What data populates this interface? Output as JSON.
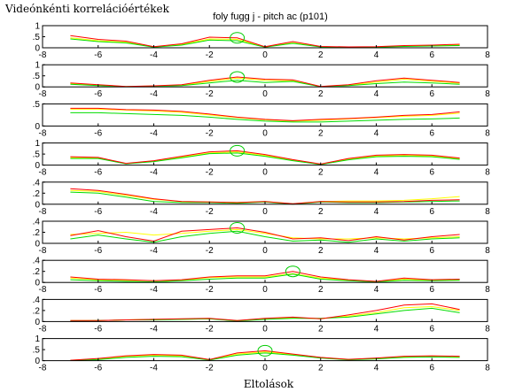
{
  "figure": {
    "title": "foly fugg j - pitch ac (p101)",
    "corner_label": "Videónkénti korrelációértékek",
    "xlabel": "Eltolások"
  },
  "colors": {
    "red": "#ff0000",
    "green": "#00dd00",
    "yellow": "#ffff00",
    "marker": "#00cc00",
    "axis": "#000000",
    "background": "#ffffff"
  },
  "chart_data": [
    {
      "type": "line",
      "x": [
        -7,
        -6,
        -5,
        -4,
        -3,
        -2,
        -1,
        0,
        1,
        2,
        3,
        4,
        5,
        6,
        7
      ],
      "xlim": [
        -8,
        8
      ],
      "xticks": [
        -8,
        -6,
        -4,
        -2,
        0,
        2,
        4,
        6,
        8
      ],
      "ylim": [
        0,
        1
      ],
      "yticks": [
        0,
        0.5,
        1
      ],
      "grid": false,
      "marker_x": -1,
      "series": [
        {
          "color": "red",
          "values": [
            0.55,
            0.38,
            0.3,
            0.05,
            0.18,
            0.48,
            0.45,
            0.05,
            0.28,
            0.06,
            0.04,
            0.05,
            0.1,
            0.12,
            0.16
          ]
        },
        {
          "color": "yellow",
          "values": [
            0.45,
            0.32,
            0.25,
            0.04,
            0.15,
            0.4,
            0.38,
            0.04,
            0.22,
            0.05,
            0.03,
            0.04,
            0.08,
            0.1,
            0.13
          ]
        },
        {
          "color": "green",
          "values": [
            0.4,
            0.28,
            0.22,
            0.03,
            0.12,
            0.35,
            0.32,
            0.03,
            0.2,
            0.04,
            0.02,
            0.03,
            0.06,
            0.08,
            0.1
          ]
        }
      ]
    },
    {
      "type": "line",
      "x": [
        -7,
        -6,
        -5,
        -4,
        -3,
        -2,
        -1,
        0,
        1,
        2,
        3,
        4,
        5,
        6,
        7
      ],
      "xlim": [
        -8,
        8
      ],
      "xticks": [
        -8,
        -6,
        -4,
        -2,
        0,
        2,
        4,
        6,
        8
      ],
      "ylim": [
        0,
        1
      ],
      "yticks": [
        0,
        0.5,
        1
      ],
      "grid": false,
      "marker_x": -1,
      "series": [
        {
          "color": "red",
          "values": [
            0.18,
            0.1,
            0.02,
            0.05,
            0.1,
            0.3,
            0.45,
            0.35,
            0.32,
            0.02,
            0.1,
            0.28,
            0.4,
            0.3,
            0.2
          ]
        },
        {
          "color": "yellow",
          "values": [
            0.15,
            0.08,
            0.02,
            0.04,
            0.08,
            0.25,
            0.4,
            0.3,
            0.28,
            0.02,
            0.08,
            0.22,
            0.35,
            0.26,
            0.17
          ]
        },
        {
          "color": "green",
          "values": [
            0.12,
            0.06,
            0.01,
            0.03,
            0.06,
            0.18,
            0.3,
            0.2,
            0.25,
            0.01,
            0.06,
            0.15,
            0.22,
            0.18,
            0.12
          ]
        }
      ]
    },
    {
      "type": "line",
      "x": [
        -7,
        -6,
        -5,
        -4,
        -3,
        -2,
        -1,
        0,
        1,
        2,
        3,
        4,
        5,
        6,
        7
      ],
      "xlim": [
        -8,
        8
      ],
      "xticks": [
        -8,
        -6,
        -4,
        -2,
        0,
        2,
        4,
        6,
        8
      ],
      "ylim": [
        0,
        0.5
      ],
      "yticks": [
        0,
        0.5
      ],
      "grid": false,
      "series": [
        {
          "color": "red",
          "values": [
            0.4,
            0.4,
            0.37,
            0.36,
            0.33,
            0.27,
            0.2,
            0.15,
            0.12,
            0.15,
            0.17,
            0.2,
            0.24,
            0.26,
            0.32
          ]
        },
        {
          "color": "yellow",
          "values": [
            0.38,
            0.38,
            0.36,
            0.34,
            0.31,
            0.25,
            0.19,
            0.14,
            0.11,
            0.13,
            0.16,
            0.19,
            0.22,
            0.24,
            0.29
          ]
        },
        {
          "color": "green",
          "values": [
            0.3,
            0.3,
            0.28,
            0.26,
            0.24,
            0.2,
            0.15,
            0.11,
            0.09,
            0.09,
            0.11,
            0.13,
            0.15,
            0.16,
            0.18
          ]
        }
      ]
    },
    {
      "type": "line",
      "x": [
        -7,
        -6,
        -5,
        -4,
        -3,
        -2,
        -1,
        0,
        1,
        2,
        3,
        4,
        5,
        6,
        7
      ],
      "xlim": [
        -8,
        8
      ],
      "xticks": [
        -8,
        -6,
        -4,
        -2,
        0,
        2,
        4,
        6,
        8
      ],
      "ylim": [
        0,
        1
      ],
      "yticks": [
        0,
        0.5,
        1
      ],
      "grid": false,
      "marker_x": -1,
      "series": [
        {
          "color": "red",
          "values": [
            0.38,
            0.35,
            0.08,
            0.2,
            0.4,
            0.6,
            0.65,
            0.48,
            0.25,
            0.05,
            0.3,
            0.45,
            0.48,
            0.45,
            0.32
          ]
        },
        {
          "color": "yellow",
          "values": [
            0.34,
            0.32,
            0.07,
            0.18,
            0.36,
            0.55,
            0.6,
            0.44,
            0.22,
            0.04,
            0.27,
            0.41,
            0.44,
            0.41,
            0.29
          ]
        },
        {
          "color": "green",
          "values": [
            0.3,
            0.3,
            0.06,
            0.16,
            0.33,
            0.52,
            0.55,
            0.4,
            0.2,
            0.03,
            0.24,
            0.38,
            0.4,
            0.38,
            0.26
          ]
        }
      ]
    },
    {
      "type": "line",
      "x": [
        -7,
        -6,
        -5,
        -4,
        -3,
        -2,
        -1,
        0,
        1,
        2,
        3,
        4,
        5,
        6,
        7
      ],
      "xlim": [
        -8,
        8
      ],
      "xticks": [
        -8,
        -6,
        -4,
        -2,
        0,
        2,
        4,
        6,
        8
      ],
      "ylim": [
        0,
        0.4
      ],
      "yticks": [
        0,
        0.2,
        0.4
      ],
      "grid": false,
      "series": [
        {
          "color": "red",
          "values": [
            0.28,
            0.25,
            0.18,
            0.1,
            0.05,
            0.04,
            0.03,
            0.05,
            0.01,
            0.05,
            0.04,
            0.04,
            0.05,
            0.07,
            0.08
          ]
        },
        {
          "color": "yellow",
          "values": [
            0.25,
            0.23,
            0.16,
            0.09,
            0.05,
            0.04,
            0.03,
            0.05,
            0.01,
            0.05,
            0.06,
            0.06,
            0.07,
            0.1,
            0.14
          ]
        },
        {
          "color": "green",
          "values": [
            0.22,
            0.2,
            0.13,
            0.05,
            0.03,
            0.03,
            0.02,
            0.04,
            0.0,
            0.04,
            0.03,
            0.03,
            0.04,
            0.05,
            0.06
          ]
        }
      ]
    },
    {
      "type": "line",
      "x": [
        -7,
        -6,
        -5,
        -4,
        -3,
        -2,
        -1,
        0,
        1,
        2,
        3,
        4,
        5,
        6,
        7
      ],
      "xlim": [
        -8,
        8
      ],
      "xticks": [
        -8,
        -6,
        -4,
        -2,
        0,
        2,
        4,
        6,
        8
      ],
      "ylim": [
        0,
        0.4
      ],
      "yticks": [
        0,
        0.2,
        0.4
      ],
      "grid": false,
      "marker_x": -1,
      "series": [
        {
          "color": "red",
          "values": [
            0.14,
            0.23,
            0.12,
            0.04,
            0.22,
            0.25,
            0.28,
            0.2,
            0.08,
            0.1,
            0.05,
            0.12,
            0.06,
            0.12,
            0.16
          ]
        },
        {
          "color": "yellow",
          "values": [
            0.16,
            0.18,
            0.2,
            0.15,
            0.18,
            0.22,
            0.25,
            0.18,
            0.1,
            0.08,
            0.08,
            0.1,
            0.08,
            0.1,
            0.12
          ]
        },
        {
          "color": "green",
          "values": [
            0.08,
            0.15,
            0.08,
            0.02,
            0.12,
            0.18,
            0.22,
            0.12,
            0.04,
            0.06,
            0.02,
            0.08,
            0.04,
            0.08,
            0.1
          ]
        }
      ]
    },
    {
      "type": "line",
      "x": [
        -7,
        -6,
        -5,
        -4,
        -3,
        -2,
        -1,
        0,
        1,
        2,
        3,
        4,
        5,
        6,
        7
      ],
      "xlim": [
        -8,
        8
      ],
      "xticks": [
        -8,
        -6,
        -4,
        -2,
        0,
        2,
        4,
        6,
        8
      ],
      "ylim": [
        0,
        0.4
      ],
      "yticks": [
        0,
        0.2,
        0.4
      ],
      "grid": false,
      "marker_x": 1,
      "series": [
        {
          "color": "red",
          "values": [
            0.1,
            0.06,
            0.05,
            0.03,
            0.05,
            0.1,
            0.12,
            0.12,
            0.2,
            0.1,
            0.05,
            0.02,
            0.08,
            0.05,
            0.06
          ]
        },
        {
          "color": "yellow",
          "values": [
            0.08,
            0.05,
            0.04,
            0.03,
            0.04,
            0.09,
            0.1,
            0.1,
            0.16,
            0.08,
            0.04,
            0.02,
            0.06,
            0.04,
            0.05
          ]
        },
        {
          "color": "green",
          "values": [
            0.05,
            0.03,
            0.02,
            0.01,
            0.03,
            0.06,
            0.08,
            0.08,
            0.15,
            0.06,
            0.03,
            0.01,
            0.04,
            0.03,
            0.04
          ]
        }
      ]
    },
    {
      "type": "line",
      "x": [
        -7,
        -6,
        -5,
        -4,
        -3,
        -2,
        -1,
        0,
        1,
        2,
        3,
        4,
        5,
        6,
        7
      ],
      "xlim": [
        -8,
        8
      ],
      "xticks": [
        -8,
        -6,
        -4,
        -2,
        0,
        2,
        4,
        6,
        8
      ],
      "ylim": [
        0,
        0.4
      ],
      "yticks": [
        0,
        0.2,
        0.4
      ],
      "grid": false,
      "series": [
        {
          "color": "red",
          "values": [
            0.02,
            0.02,
            0.03,
            0.04,
            0.05,
            0.06,
            0.02,
            0.06,
            0.08,
            0.05,
            0.12,
            0.2,
            0.3,
            0.32,
            0.22
          ]
        },
        {
          "color": "yellow",
          "values": [
            0.02,
            0.02,
            0.03,
            0.04,
            0.04,
            0.05,
            0.02,
            0.05,
            0.07,
            0.05,
            0.1,
            0.16,
            0.25,
            0.27,
            0.2
          ]
        },
        {
          "color": "green",
          "values": [
            0.01,
            0.02,
            0.03,
            0.03,
            0.04,
            0.05,
            0.01,
            0.04,
            0.06,
            0.06,
            0.08,
            0.14,
            0.2,
            0.24,
            0.16
          ]
        }
      ]
    },
    {
      "type": "line",
      "x": [
        -7,
        -6,
        -5,
        -4,
        -3,
        -2,
        -1,
        0,
        1,
        2,
        3,
        4,
        5,
        6,
        7
      ],
      "xlim": [
        -8,
        8
      ],
      "xticks": [
        -8,
        -6,
        -4,
        -2,
        0,
        2,
        4,
        6,
        8
      ],
      "ylim": [
        0,
        1
      ],
      "yticks": [
        0,
        0.5,
        1
      ],
      "grid": false,
      "marker_x": 0,
      "series": [
        {
          "color": "red",
          "values": [
            0.02,
            0.1,
            0.22,
            0.28,
            0.25,
            0.05,
            0.35,
            0.45,
            0.3,
            0.15,
            0.06,
            0.12,
            0.2,
            0.22,
            0.2
          ]
        },
        {
          "color": "yellow",
          "values": [
            0.02,
            0.08,
            0.2,
            0.25,
            0.22,
            0.05,
            0.3,
            0.4,
            0.28,
            0.14,
            0.06,
            0.1,
            0.18,
            0.2,
            0.18
          ]
        },
        {
          "color": "green",
          "values": [
            0.01,
            0.05,
            0.15,
            0.2,
            0.18,
            0.03,
            0.25,
            0.35,
            0.25,
            0.12,
            0.04,
            0.08,
            0.15,
            0.17,
            0.15
          ]
        }
      ]
    }
  ]
}
